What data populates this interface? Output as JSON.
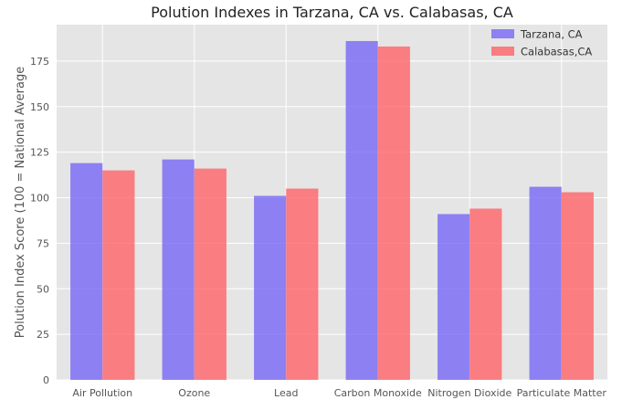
{
  "chart_data": {
    "type": "bar",
    "title": "Polution Indexes in Tarzana, CA vs. Calabasas, CA",
    "xlabel": "",
    "ylabel": "Polution Index Score (100 = National Average",
    "categories": [
      "Air Pollution",
      "Ozone",
      "Lead",
      "Carbon Monoxide",
      "Nitrogen Dioxide",
      "Particulate Matter"
    ],
    "series": [
      {
        "name": "Tarzana, CA",
        "values": [
          119,
          121,
          101,
          186,
          91,
          106
        ],
        "color": "#6d5ef5"
      },
      {
        "name": "Calabasas,CA",
        "values": [
          115,
          116,
          105,
          183,
          94,
          103
        ],
        "color": "#ff5a5f"
      }
    ],
    "ylim": [
      0,
      195
    ],
    "yticks": [
      0,
      25,
      50,
      75,
      100,
      125,
      150,
      175
    ],
    "grid": true,
    "legend_position": "top-right",
    "background_color": "#e5e5e5",
    "grid_color": "#ffffff"
  }
}
